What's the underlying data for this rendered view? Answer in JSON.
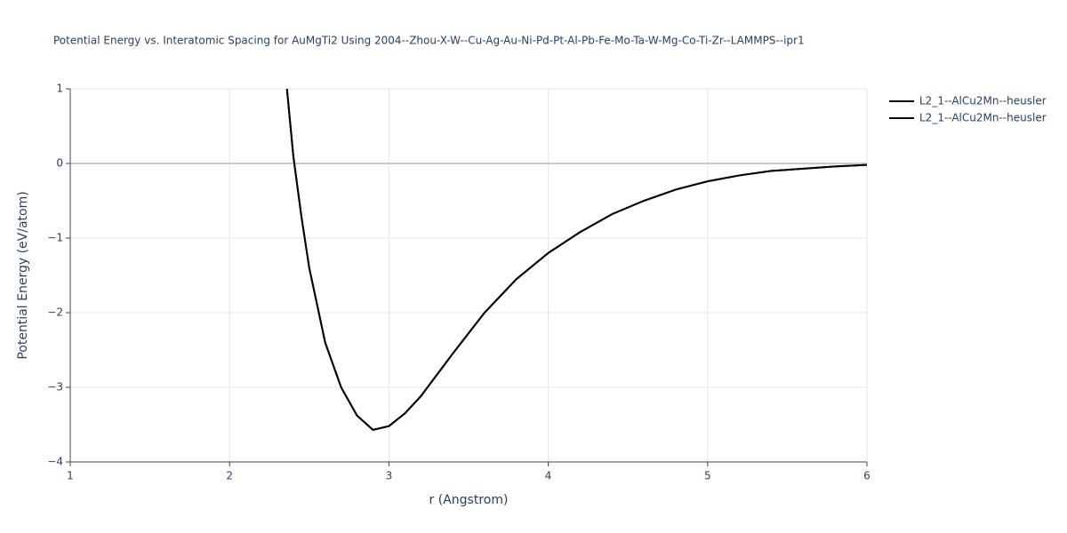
{
  "chart_data": {
    "type": "line",
    "title": "Potential Energy vs. Interatomic Spacing for AuMgTi2 Using 2004--Zhou-X-W--Cu-Ag-Au-Ni-Pd-Pt-Al-Pb-Fe-Mo-Ta-W-Mg-Co-Ti-Zr--LAMMPS--ipr1",
    "x_label": "r (Angstrom)",
    "y_label": "Potential Energy (eV/atom)",
    "x": [
      2.36,
      2.4,
      2.45,
      2.5,
      2.55,
      2.6,
      2.7,
      2.8,
      2.9,
      3.0,
      3.1,
      3.2,
      3.4,
      3.6,
      3.8,
      4.0,
      4.2,
      4.4,
      4.6,
      4.8,
      5.0,
      5.2,
      5.4,
      5.6,
      5.8,
      6.0
    ],
    "series": [
      {
        "name": "L2_1--AlCu2Mn--heusler",
        "color": "#000000",
        "values": [
          1.0,
          0.1,
          -0.7,
          -1.4,
          -1.9,
          -2.4,
          -3.0,
          -3.38,
          -3.57,
          -3.52,
          -3.35,
          -3.12,
          -2.55,
          -2.0,
          -1.55,
          -1.2,
          -0.92,
          -0.68,
          -0.5,
          -0.35,
          -0.24,
          -0.16,
          -0.1,
          -0.07,
          -0.04,
          -0.02
        ]
      },
      {
        "name": "L2_1--AlCu2Mn--heusler",
        "color": "#000000",
        "values": [
          1.0,
          0.1,
          -0.7,
          -1.4,
          -1.9,
          -2.4,
          -3.0,
          -3.38,
          -3.57,
          -3.52,
          -3.35,
          -3.12,
          -2.55,
          -2.0,
          -1.55,
          -1.2,
          -0.92,
          -0.68,
          -0.5,
          -0.35,
          -0.24,
          -0.16,
          -0.1,
          -0.07,
          -0.04,
          -0.02
        ]
      }
    ],
    "xlim": [
      1,
      6
    ],
    "ylim": [
      -4,
      1
    ],
    "xticks": [
      1,
      2,
      3,
      4,
      5,
      6
    ],
    "yticks": [
      {
        "value": -4,
        "label": "−4"
      },
      {
        "value": -3,
        "label": "−3"
      },
      {
        "value": -2,
        "label": "−2"
      },
      {
        "value": -1,
        "label": "−1"
      },
      0,
      1
    ],
    "grid": true
  }
}
